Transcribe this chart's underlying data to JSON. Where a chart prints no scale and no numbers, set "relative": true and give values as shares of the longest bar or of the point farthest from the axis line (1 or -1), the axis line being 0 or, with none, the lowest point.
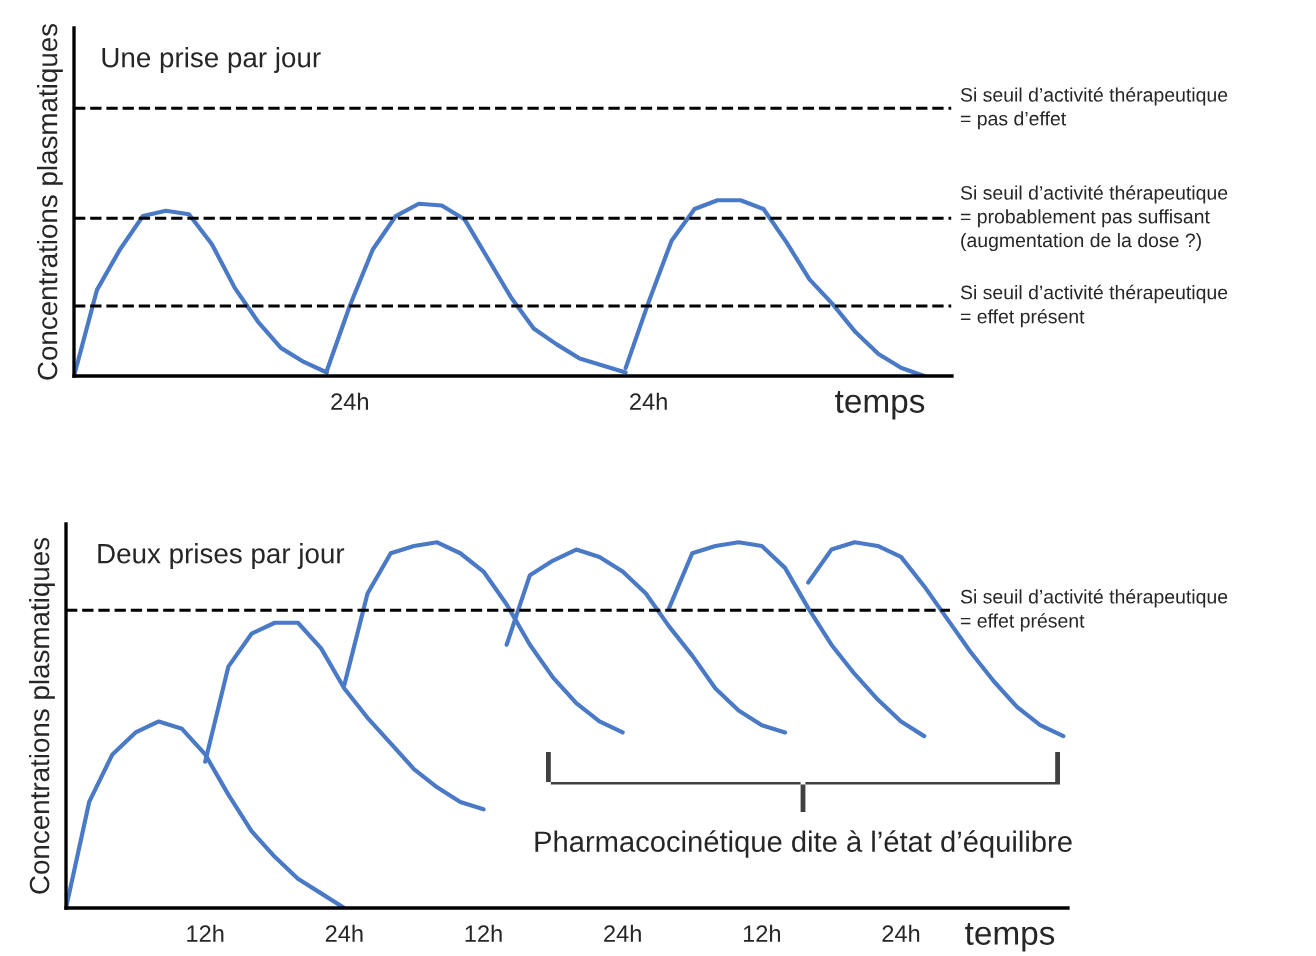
{
  "chart_data": [
    {
      "type": "line",
      "title": "Une prise par jour",
      "ylabel": "Concentrations plasmatiques",
      "xlabel": "temps",
      "relative": true,
      "tick_labels": "x",
      "categories": [
        null,
        null,
        null,
        null,
        null,
        null,
        null,
        null,
        null,
        null,
        null,
        null,
        "24h",
        null,
        null,
        null,
        null,
        null,
        null,
        null,
        null,
        null,
        null,
        null,
        null,
        "24h",
        null,
        null,
        null,
        null,
        null,
        null,
        null,
        null,
        null,
        null,
        null,
        null,
        null
      ],
      "series": [
        {
          "color": "#4a7ac6",
          "values": [
            0,
            0.49,
            0.72,
            0.91,
            0.94,
            0.92,
            0.75,
            0.5,
            0.31,
            0.16,
            0.08,
            0.02,
            null,
            null,
            null,
            null,
            null,
            null,
            null,
            null,
            null,
            null,
            null,
            null,
            null,
            null,
            null,
            null,
            null,
            null,
            null,
            null,
            null,
            null,
            null,
            null,
            null,
            null,
            null
          ]
        },
        {
          "color": "#4a7ac6",
          "values": [
            null,
            null,
            null,
            null,
            null,
            null,
            null,
            null,
            null,
            null,
            null,
            0.03,
            0.4,
            0.72,
            0.91,
            0.98,
            0.97,
            0.89,
            0.67,
            0.45,
            0.27,
            0.18,
            0.1,
            0.06,
            0.02,
            null,
            null,
            null,
            null,
            null,
            null,
            null,
            null,
            null,
            null,
            null,
            null,
            null,
            null
          ]
        },
        {
          "color": "#4a7ac6",
          "values": [
            null,
            null,
            null,
            null,
            null,
            null,
            null,
            null,
            null,
            null,
            null,
            null,
            null,
            null,
            null,
            null,
            null,
            null,
            null,
            null,
            null,
            null,
            null,
            null,
            0.045,
            0.42,
            0.77,
            0.95,
            1.0,
            1.0,
            0.95,
            0.76,
            0.55,
            0.41,
            0.25,
            0.125,
            0.045,
            0,
            null
          ]
        }
      ],
      "ref_lines": [
        {
          "axis": "y",
          "value": 1.523,
          "label": "Si seuil d’activité thérapeutique\n= pas d’effet",
          "line_style": "dashed",
          "color": "#000000"
        },
        {
          "axis": "y",
          "value": 0.898,
          "label": "Si seuil d’activité thérapeutique\n= probablement pas suffisant\n(augmentation de la dose ?)",
          "line_style": "dashed",
          "color": "#000000"
        },
        {
          "axis": "y",
          "value": 0.398,
          "label": "Si seuil d’activité thérapeutique\n= effet présent",
          "line_style": "dashed",
          "color": "#000000"
        }
      ]
    },
    {
      "type": "line",
      "title": "Deux prises par jour",
      "ylabel": "Concentrations plasmatiques",
      "xlabel": "temps",
      "relative": true,
      "tick_labels": "x",
      "categories": [
        null,
        null,
        null,
        null,
        null,
        null,
        "12h",
        null,
        null,
        null,
        null,
        null,
        "24h",
        null,
        null,
        null,
        null,
        null,
        "12h",
        null,
        null,
        null,
        null,
        null,
        "24h",
        null,
        null,
        null,
        null,
        null,
        "12h",
        null,
        null,
        null,
        null,
        null,
        "24h",
        null,
        null,
        null,
        null,
        null,
        null,
        null
      ],
      "series": [
        {
          "color": "#4a7ac6",
          "values": [
            0,
            0.29,
            0.42,
            0.48,
            0.51,
            0.49,
            0.42,
            0.31,
            0.21,
            0.14,
            0.08,
            0.04,
            0,
            null,
            null,
            null,
            null,
            null,
            null,
            null,
            null,
            null,
            null,
            null,
            null,
            null,
            null,
            null,
            null,
            null,
            null,
            null,
            null,
            null,
            null,
            null,
            null,
            null,
            null,
            null,
            null,
            null,
            null,
            null
          ]
        },
        {
          "color": "#4a7ac6",
          "values": [
            null,
            null,
            null,
            null,
            null,
            null,
            0.4,
            0.66,
            0.75,
            0.78,
            0.78,
            0.71,
            0.6,
            0.52,
            0.45,
            0.38,
            0.33,
            0.29,
            0.27,
            null,
            null,
            null,
            null,
            null,
            null,
            null,
            null,
            null,
            null,
            null,
            null,
            null,
            null,
            null,
            null,
            null,
            null,
            null,
            null,
            null,
            null,
            null,
            null,
            null
          ]
        },
        {
          "color": "#4a7ac6",
          "values": [
            null,
            null,
            null,
            null,
            null,
            null,
            null,
            null,
            null,
            null,
            null,
            null,
            0.61,
            0.86,
            0.97,
            0.99,
            1.0,
            0.97,
            0.92,
            0.83,
            0.72,
            0.63,
            0.56,
            0.51,
            0.48,
            null,
            null,
            null,
            null,
            null,
            null,
            null,
            null,
            null,
            null,
            null,
            null,
            null,
            null,
            null,
            null,
            null,
            null,
            null
          ]
        },
        {
          "color": "#4a7ac6",
          "values": [
            null,
            null,
            null,
            null,
            null,
            null,
            null,
            null,
            null,
            null,
            null,
            null,
            null,
            null,
            null,
            null,
            null,
            null,
            null,
            0.72,
            0.91,
            0.95,
            0.98,
            0.96,
            0.92,
            0.86,
            0.77,
            0.69,
            0.6,
            0.54,
            0.5,
            0.48,
            null,
            null,
            null,
            null,
            null,
            null,
            null,
            null,
            null,
            null,
            null,
            null
          ]
        },
        {
          "color": "#4a7ac6",
          "values": [
            null,
            null,
            null,
            null,
            null,
            null,
            null,
            null,
            null,
            null,
            null,
            null,
            null,
            null,
            null,
            null,
            null,
            null,
            null,
            null,
            null,
            null,
            null,
            null,
            null,
            null,
            0.82,
            0.97,
            0.99,
            1.0,
            0.99,
            0.93,
            0.82,
            0.72,
            0.64,
            0.57,
            0.51,
            0.47,
            null,
            null,
            null,
            null,
            null,
            null
          ]
        },
        {
          "color": "#4a7ac6",
          "values": [
            null,
            null,
            null,
            null,
            null,
            null,
            null,
            null,
            null,
            null,
            null,
            null,
            null,
            null,
            null,
            null,
            null,
            null,
            null,
            null,
            null,
            null,
            null,
            null,
            null,
            null,
            null,
            null,
            null,
            null,
            null,
            null,
            0.89,
            0.98,
            1.0,
            0.99,
            0.96,
            0.88,
            0.79,
            0.7,
            0.62,
            0.55,
            0.5,
            0.47
          ]
        }
      ],
      "ref_lines": [
        {
          "axis": "y",
          "value": 0.814,
          "label": "Si seuil d’activité thérapeutique\n= effet présent",
          "line_style": "dashed",
          "color": "#000000"
        }
      ],
      "annotations": [
        "Pharmacocinétique dite à l’état d’équilibre"
      ]
    }
  ]
}
